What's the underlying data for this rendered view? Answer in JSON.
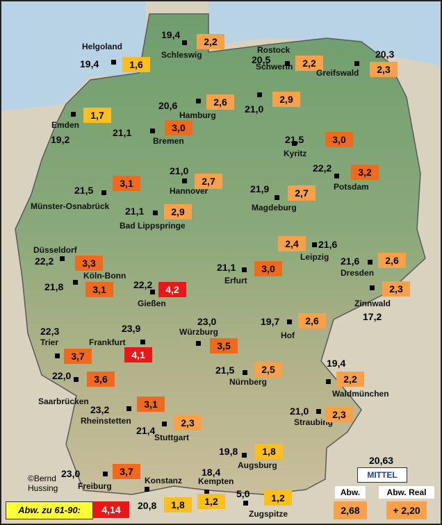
{
  "stations": [
    {
      "name": "Helgoland",
      "temp": "19,4",
      "anomaly": "1,6"
    },
    {
      "name": "Schleswig",
      "temp": "19,4",
      "anomaly": "2,2"
    },
    {
      "name": "Rostock",
      "temp": "20,5",
      "anomaly": "2,2"
    },
    {
      "name": "Greifswald",
      "temp": "20,3",
      "anomaly": "2,3"
    },
    {
      "name": "Schwerin",
      "temp": "21,0",
      "anomaly": "2,9"
    },
    {
      "name": "Hamburg",
      "temp": "20,6",
      "anomaly": "2,6"
    },
    {
      "name": "Emden",
      "temp": "19,2",
      "anomaly": "1,7"
    },
    {
      "name": "Bremen",
      "temp": "21,1",
      "anomaly": "3,0"
    },
    {
      "name": "Kyritz",
      "temp": "21,5",
      "anomaly": "3,0"
    },
    {
      "name": "Potsdam",
      "temp": "22,2",
      "anomaly": "3,2"
    },
    {
      "name": "Hannover",
      "temp": "21,0",
      "anomaly": "2,7"
    },
    {
      "name": "Münster-Osnabrück",
      "temp": "21,5",
      "anomaly": "3,1"
    },
    {
      "name": "Magdeburg",
      "temp": "21,9",
      "anomaly": "2,7"
    },
    {
      "name": "Bad Lippspringe",
      "temp": "21,1",
      "anomaly": "2,9"
    },
    {
      "name": "Leipzig",
      "temp": "21,6",
      "anomaly": "2,4"
    },
    {
      "name": "Düsseldorf",
      "temp": "22,2",
      "anomaly": "3,3"
    },
    {
      "name": "Dresden",
      "temp": "21,6",
      "anomaly": "2,6"
    },
    {
      "name": "Erfurt",
      "temp": "21,1",
      "anomaly": "3,0"
    },
    {
      "name": "Köln-Bonn",
      "temp": "21,8",
      "anomaly": "3,1"
    },
    {
      "name": "Gießen",
      "temp": "22,2",
      "anomaly": "4,2"
    },
    {
      "name": "Zinnwald",
      "temp": "17,2",
      "anomaly": "2,3"
    },
    {
      "name": "Hof",
      "temp": "19,7",
      "anomaly": "2,6"
    },
    {
      "name": "Trier",
      "temp": "22,3",
      "anomaly": "3,7"
    },
    {
      "name": "Frankfurt",
      "temp": "23,9",
      "anomaly": "4,1"
    },
    {
      "name": "Würzburg",
      "temp": "23,0",
      "anomaly": "3,5"
    },
    {
      "name": "Nürnberg",
      "temp": "21,5",
      "anomaly": "2,5"
    },
    {
      "name": "Saarbrücken",
      "temp": "22,0",
      "anomaly": "3,6"
    },
    {
      "name": "Waldmünchen",
      "temp": "19,4",
      "anomaly": "2,2"
    },
    {
      "name": "Rheinstetten",
      "temp": "23,2",
      "anomaly": "3,1"
    },
    {
      "name": "Straubing",
      "temp": "21,0",
      "anomaly": "2,3"
    },
    {
      "name": "Stuttgart",
      "temp": "21,4",
      "anomaly": "2,3"
    },
    {
      "name": "Augsburg",
      "temp": "19,8",
      "anomaly": "1,8"
    },
    {
      "name": "Freiburg",
      "temp": "23,0",
      "anomaly": "3,7"
    },
    {
      "name": "Konstanz",
      "temp": "20,8",
      "anomaly": "1,8"
    },
    {
      "name": "Kempten",
      "temp": "18,4",
      "anomaly": "1,2"
    },
    {
      "name": "Zugspitze",
      "temp": "5,0",
      "anomaly": "1,2"
    }
  ],
  "copyright": [
    "©Bernd",
    "Hussing"
  ],
  "legend": {
    "mittel_label": "MITTEL",
    "mittel_temp": "20,63",
    "abw_label": "Abw.",
    "abw_value": "2,68",
    "abw_real_label": "Abw. Real",
    "abw_real_value": "+ 2,20"
  },
  "footer": {
    "label": "Abw. zu 61-90:",
    "value": "4,14"
  }
}
